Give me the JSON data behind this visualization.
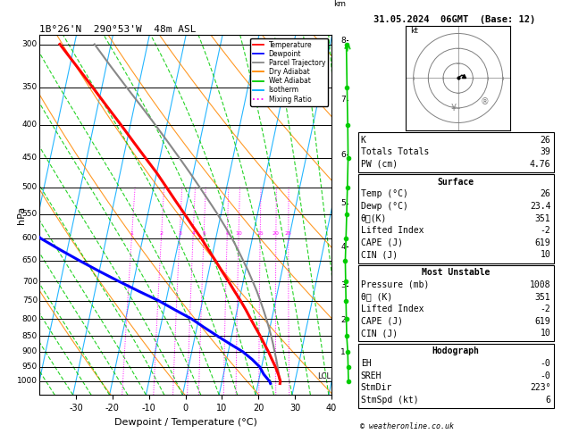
{
  "title_left": "1B°26'N  290°53'W  48m ASL",
  "title_right": "31.05.2024  06GMT  (Base: 12)",
  "xlabel": "Dewpoint / Temperature (°C)",
  "ylabel_left": "hPa",
  "pressure_levels": [
    300,
    350,
    400,
    450,
    500,
    550,
    600,
    650,
    700,
    750,
    800,
    850,
    900,
    950,
    1000
  ],
  "xlim": [
    -40,
    40
  ],
  "xticks": [
    -30,
    -20,
    -10,
    0,
    10,
    20,
    30,
    40
  ],
  "pmin": 290,
  "pmax": 1050,
  "skew_factor": 37.5,
  "isotherm_color": "#00aaff",
  "dry_adiabat_color": "#ff8800",
  "wet_adiabat_color": "#00cc00",
  "mixing_ratio_color": "#ff00ff",
  "temp_color": "#ff0000",
  "dewp_color": "#0000ff",
  "parcel_color": "#888888",
  "bg_color": "#ffffff",
  "legend_items": [
    "Temperature",
    "Dewpoint",
    "Parcel Trajectory",
    "Dry Adiabat",
    "Wet Adiabat",
    "Isotherm",
    "Mixing Ratio"
  ],
  "legend_colors": [
    "#ff0000",
    "#0000ff",
    "#888888",
    "#ff8800",
    "#00cc00",
    "#00aaff",
    "#ff00ff"
  ],
  "legend_styles": [
    "solid",
    "solid",
    "solid",
    "solid",
    "solid",
    "solid",
    "dotted"
  ],
  "sounding_pressures": [
    1008,
    1000,
    975,
    950,
    925,
    900,
    875,
    850,
    825,
    800,
    775,
    750,
    725,
    700,
    675,
    650,
    625,
    600,
    575,
    550,
    525,
    500,
    475,
    450,
    425,
    400,
    375,
    350,
    325,
    300
  ],
  "sounding_temp": [
    26.0,
    26.0,
    25.0,
    23.8,
    22.4,
    21.0,
    19.4,
    17.8,
    16.0,
    14.2,
    12.4,
    10.4,
    8.2,
    6.0,
    3.6,
    1.2,
    -1.4,
    -4.0,
    -7.0,
    -10.0,
    -13.2,
    -16.5,
    -20.0,
    -24.0,
    -28.2,
    -32.6,
    -37.4,
    -42.5,
    -48.0,
    -54.0
  ],
  "sounding_dewp": [
    23.4,
    23.0,
    21.0,
    19.5,
    17.0,
    14.0,
    10.0,
    6.0,
    2.0,
    -2.0,
    -7.0,
    -12.0,
    -18.0,
    -24.0,
    -30.0,
    -36.0,
    -42.0,
    -48.0,
    -52.0,
    -55.0,
    -58.0,
    -61.0,
    -64.0,
    -67.0,
    -68.0,
    -69.0,
    -70.0,
    -70.0,
    -70.0,
    -70.0
  ],
  "parcel_pressures": [
    1008,
    1000,
    975,
    950,
    925,
    900,
    875,
    850,
    825,
    800,
    775,
    750,
    725,
    700,
    675,
    650,
    625,
    600,
    575,
    550,
    525,
    500,
    475,
    450,
    425,
    400,
    375,
    350,
    325,
    300
  ],
  "parcel_temp": [
    26.0,
    25.8,
    25.1,
    24.4,
    23.6,
    22.7,
    21.8,
    20.8,
    19.7,
    18.5,
    17.2,
    15.8,
    14.3,
    12.6,
    10.8,
    8.8,
    6.7,
    4.4,
    1.8,
    -1.0,
    -4.1,
    -7.4,
    -10.9,
    -14.7,
    -18.8,
    -23.2,
    -28.0,
    -33.2,
    -38.7,
    -44.5
  ],
  "mixing_ratio_lines": [
    1,
    2,
    3,
    4,
    5,
    8,
    10,
    15,
    20,
    25
  ],
  "km_ticks": [
    1,
    2,
    3,
    4,
    5,
    6,
    7,
    8
  ],
  "km_pressures": [
    902,
    805,
    710,
    618,
    530,
    445,
    366,
    296
  ],
  "lcl_pressure": 982,
  "wind_pressures": [
    1000,
    950,
    900,
    850,
    800,
    750,
    700,
    650,
    600,
    550,
    500,
    450,
    400,
    350,
    300
  ],
  "wind_x": [
    0.2,
    0.15,
    0.1,
    -0.05,
    -0.1,
    -0.15,
    -0.2,
    -0.25,
    -0.15,
    -0.05,
    0.05,
    0.15,
    0.1,
    0.0,
    -0.1
  ],
  "stats": {
    "K": 26,
    "Totals Totals": 39,
    "PW (cm)": "4.76",
    "Temp_C": 26,
    "Dewp_C": "23.4",
    "theta_e": 351,
    "Lifted_Index": -2,
    "CAPE": 619,
    "CIN": 10,
    "MU_Pressure": 1008,
    "MU_theta_e": 351,
    "MU_LI": -2,
    "MU_CAPE": 619,
    "MU_CIN": 10,
    "EH": "-0",
    "SREH": "-0",
    "StmDir": "223°",
    "StmSpd": 6
  }
}
